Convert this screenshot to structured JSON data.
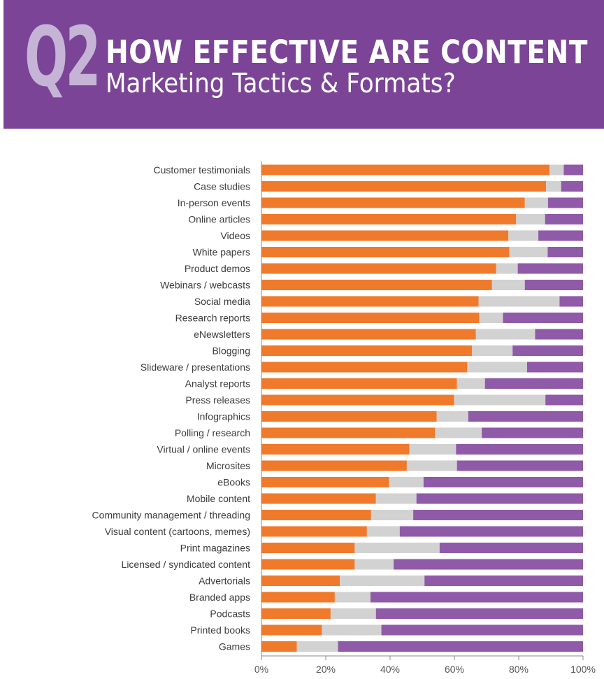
{
  "header": {
    "badge": "Q2",
    "title_line1": "HOW EFFECTIVE ARE CONTENT",
    "title_line2": "Marketing Tactics & Formats?"
  },
  "colors": {
    "header_bg": "#7b4496",
    "badge": "#c6b4d7",
    "effective": "#f07a2b",
    "neutral": "#d3d2d2",
    "ineffective": "#8f5aa7"
  },
  "chart_data": {
    "type": "bar",
    "orientation": "horizontal",
    "stacked": true,
    "xlim": [
      0,
      100
    ],
    "x_ticks": [
      "0%",
      "20%",
      "40%",
      "60%",
      "80%",
      "100%"
    ],
    "categories": [
      "Customer testimonials",
      "Case studies",
      "In-person events",
      "Online articles",
      "Videos",
      "White papers",
      "Product demos",
      "Webinars / webcasts",
      "Social media",
      "Research reports",
      "eNewsletters",
      "Blogging",
      "Slideware / presentations",
      "Analyst reports",
      "Press releases",
      "Infographics",
      "Polling / research",
      "Virtual / online events",
      "Microsites",
      "eBooks",
      "Mobile content",
      "Community management / threading",
      "Visual content (cartoons, memes)",
      "Print magazines",
      "Licensed / syndicated content",
      "Advertorials",
      "Branded apps",
      "Podcasts",
      "Printed books",
      "Games"
    ],
    "series": [
      {
        "values": [
          89.6,
          88.5,
          81.9,
          79.2,
          76.8,
          77.1,
          73.0,
          71.7,
          67.5,
          67.7,
          66.7,
          65.5,
          64.0,
          60.8,
          59.9,
          54.5,
          54.0,
          46.0,
          45.2,
          39.7,
          35.6,
          34.1,
          32.8,
          29.0,
          29.0,
          24.4,
          22.8,
          21.5,
          18.8,
          11.0
        ]
      },
      {
        "values": [
          4.4,
          4.7,
          7.2,
          9.0,
          9.3,
          11.9,
          6.7,
          10.2,
          25.2,
          7.4,
          18.4,
          12.6,
          18.6,
          8.7,
          28.4,
          9.8,
          14.5,
          14.5,
          15.6,
          10.7,
          12.6,
          13.1,
          10.2,
          26.4,
          12.1,
          26.3,
          11.1,
          14.1,
          18.5,
          12.8
        ]
      },
      {
        "values": [
          6.0,
          6.8,
          10.9,
          11.8,
          13.9,
          11.0,
          20.3,
          18.1,
          7.3,
          24.9,
          14.9,
          21.9,
          17.4,
          30.5,
          11.7,
          35.7,
          31.5,
          39.5,
          39.2,
          49.6,
          51.8,
          52.8,
          57.0,
          44.6,
          58.9,
          49.3,
          66.1,
          64.4,
          62.7,
          76.2
        ]
      }
    ]
  }
}
